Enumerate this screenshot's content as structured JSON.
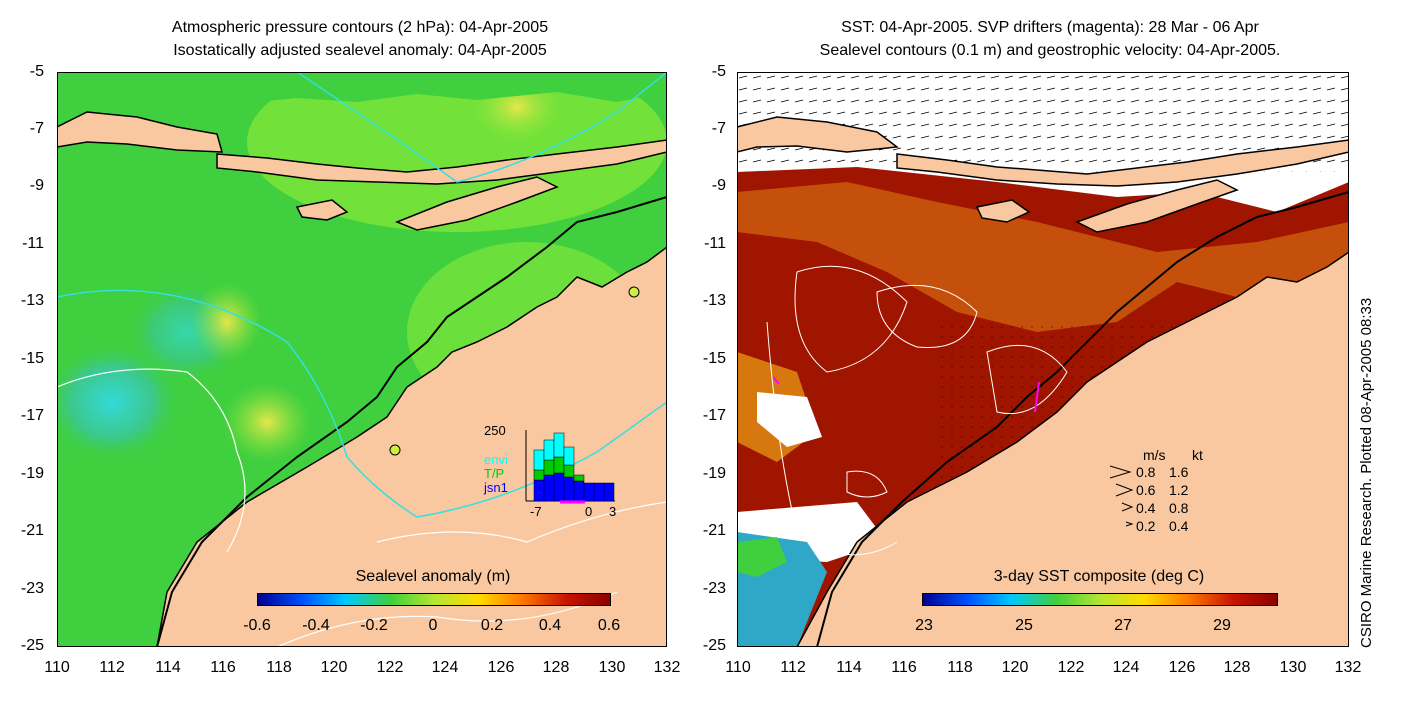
{
  "left_panel": {
    "title_line1": "Atmospheric pressure contours (2 hPa): 04-Apr-2005",
    "title_line2": "Isostatically adjusted sealevel anomaly: 04-Apr-2005",
    "colorbar_label": "Sealevel anomaly (m)",
    "colorbar_ticks": [
      "-0.6",
      "-0.4",
      "-0.2",
      "0",
      "0.2",
      "0.4",
      "0.6"
    ],
    "inset": {
      "y_max_label": "250",
      "series": [
        "envi",
        "T/P",
        "jsn1"
      ],
      "series_colors": [
        "#00ffff",
        "#00cc00",
        "#0000ff"
      ],
      "x_ticks": [
        "-7",
        "0",
        "3"
      ]
    }
  },
  "right_panel": {
    "title_line1": "SST: 04-Apr-2005. SVP drifters (magenta): 28 Mar - 06 Apr",
    "title_line2": "Sealevel contours (0.1 m) and geostrophic velocity: 04-Apr-2005.",
    "colorbar_label": "3-day SST composite (deg C)",
    "colorbar_ticks": [
      "23",
      "25",
      "27",
      "29"
    ],
    "velocity_legend": {
      "header_ms": "m/s",
      "header_kt": "kt",
      "rows": [
        {
          "ms": "0.8",
          "kt": "1.6"
        },
        {
          "ms": "0.6",
          "kt": "1.2"
        },
        {
          "ms": "0.4",
          "kt": "0.8"
        },
        {
          "ms": "0.2",
          "kt": "0.4"
        }
      ]
    }
  },
  "axes": {
    "y_ticks": [
      "-5",
      "-7",
      "-9",
      "-11",
      "-13",
      "-15",
      "-17",
      "-19",
      "-21",
      "-23",
      "-25"
    ],
    "x_ticks": [
      "110",
      "112",
      "114",
      "116",
      "118",
      "120",
      "122",
      "124",
      "126",
      "128",
      "130",
      "132"
    ]
  },
  "credit": "CSIRO Marine Research. Plotted 08-Apr-2005 08:33",
  "colors": {
    "land": "#f9c8a0",
    "ocean_green": "#3fcf3f",
    "sst_red": "#a01500"
  }
}
